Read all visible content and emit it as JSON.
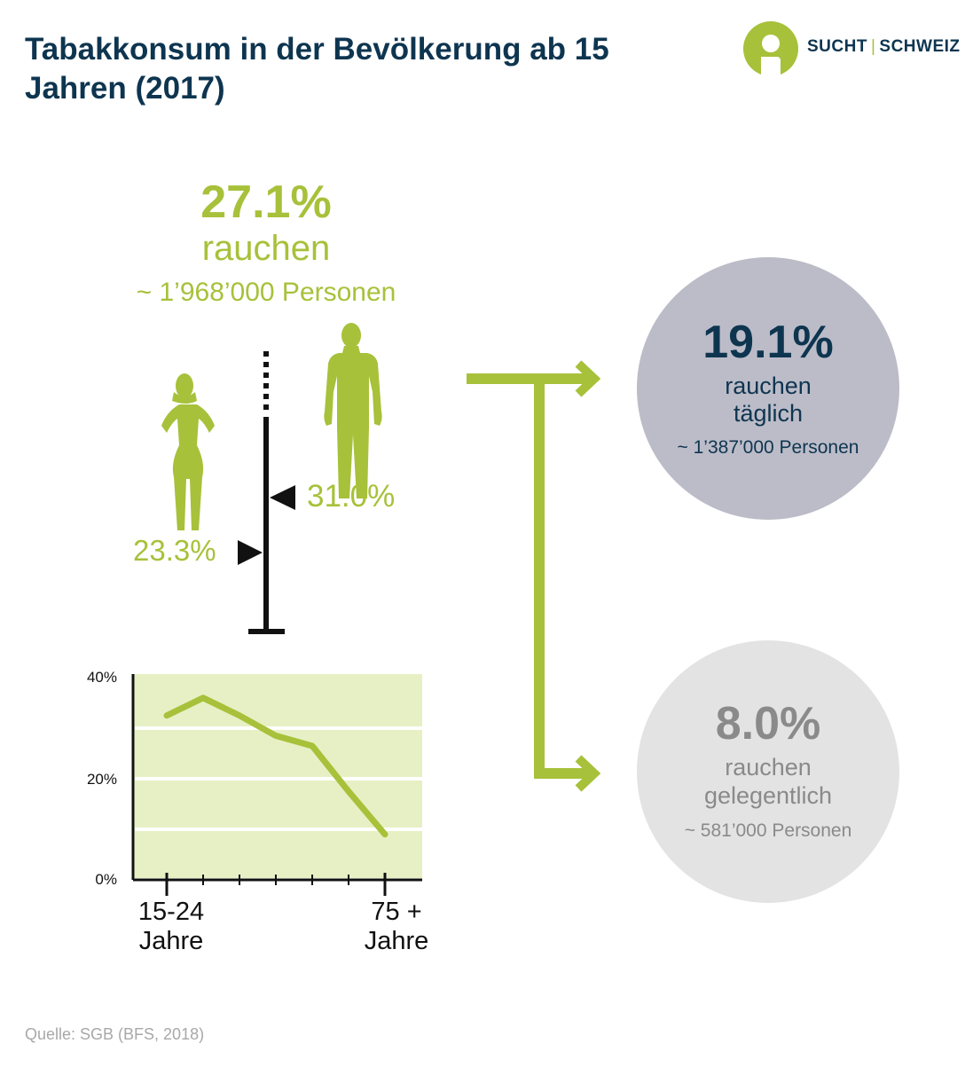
{
  "title": "Tabakkonsum in der Bevölkerung ab 15 Jahren (2017)",
  "logo": {
    "left": "SUCHT",
    "separator": "|",
    "right": "SCHWEIZ"
  },
  "total": {
    "percent": "27.1%",
    "label": "rauchen",
    "persons": "~ 1’968’000 Personen"
  },
  "gender": {
    "men": "31.0%",
    "women": "23.3%"
  },
  "daily": {
    "percent": "19.1%",
    "label1": "rauchen",
    "label2": "täglich",
    "persons": "~ 1’387’000 Personen"
  },
  "occasional": {
    "percent": "8.0%",
    "label1": "rauchen",
    "label2": "gelegentlich",
    "persons": "~ 581’000 Personen"
  },
  "chart_data": {
    "type": "line",
    "y_ticks": [
      "40%",
      "20%",
      "0%"
    ],
    "ylim": [
      0,
      40
    ],
    "x_first": {
      "line1": "15-24",
      "line2": "Jahre"
    },
    "x_last": {
      "line1": "75 +",
      "line2": "Jahre"
    },
    "values": [
      32.5,
      36,
      32.5,
      28.5,
      26.5,
      17.5,
      9
    ],
    "grid": true
  },
  "source": "Quelle: SGB (BFS, 2018)",
  "colors": {
    "accent": "#a7c13a",
    "navy": "#0e3550",
    "daily_circle": "#bcbcc8",
    "occasional_circle": "#e3e3e3",
    "chart_bg": "#e7f0c4"
  }
}
